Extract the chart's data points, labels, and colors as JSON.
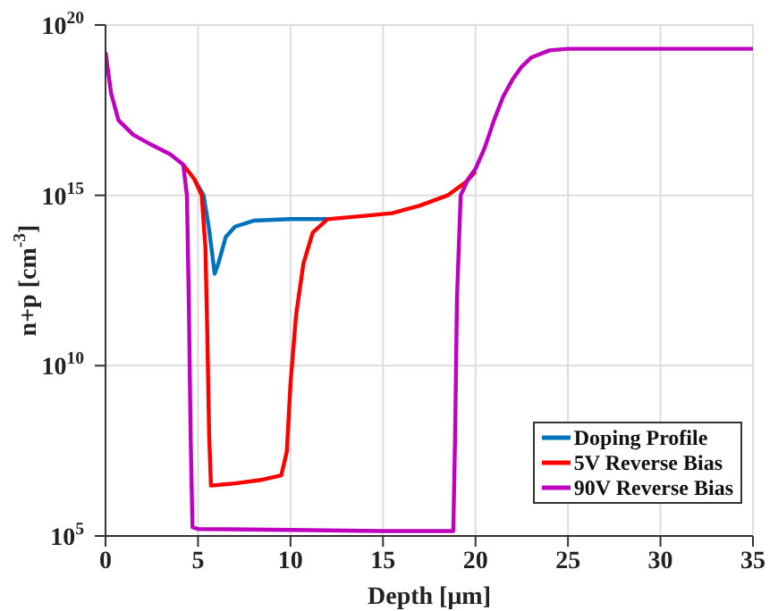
{
  "chart_data": {
    "type": "line",
    "xlabel": "Depth [μm]",
    "ylabel": "n+p [cm$^{-3}$]",
    "xlim": [
      0,
      35
    ],
    "xticks": [
      0,
      5,
      10,
      15,
      20,
      25,
      30,
      35
    ],
    "ylim": [
      100000.0,
      1e+20
    ],
    "yticks": [
      {
        "value": 100000.0,
        "label": "10$^{5}$"
      },
      {
        "value": 10000000000.0,
        "label": "10$^{10}$"
      },
      {
        "value": 1000000000000000.0,
        "label": "10$^{15}$"
      },
      {
        "value": 1e+20,
        "label": "10$^{20}$"
      }
    ],
    "log": "y",
    "grid": true,
    "legend": "bottom right",
    "marker": "none",
    "line_style": "solid",
    "series": [
      {
        "name": "Doping Profile",
        "color": "#0072bd",
        "x": [
          4.8,
          5.3,
          5.6,
          5.9,
          6.1,
          6.5,
          7,
          8,
          10,
          12
        ],
        "values": [
          3000000000000000.0,
          1000000000000000.0,
          100000000000000.0,
          5000000000000.0,
          10000000000000.0,
          60000000000000.0,
          120000000000000.0,
          180000000000000.0,
          200000000000000.0,
          200000000000000.0
        ]
      },
      {
        "name": "5V Reverse Bias",
        "color": "#ff0000",
        "x": [
          4.2,
          4.8,
          5.2,
          5.4,
          5.5,
          5.6,
          5.7,
          7,
          8.5,
          9.5,
          9.8,
          10,
          10.3,
          10.7,
          11.2,
          12,
          14,
          15.5,
          17,
          18.5,
          19.5,
          20
        ],
        "values": [
          8000000000000000.0,
          3000000000000000.0,
          1000000000000000.0,
          30000000000000.0,
          100000000000.0,
          100000000.0,
          3000000.0,
          3500000.0,
          4500000.0,
          6000000.0,
          30000000.0,
          3000000000.0,
          300000000000.0,
          10000000000000.0,
          80000000000000.0,
          200000000000000.0,
          250000000000000.0,
          300000000000000.0,
          500000000000000.0,
          1000000000000000.0,
          2500000000000000.0,
          5000000000000000.0
        ]
      },
      {
        "name": "90V Reverse Bias",
        "color": "#c000c0",
        "x": [
          0,
          0.3,
          0.7,
          1.5,
          2.5,
          3.5,
          4.2,
          4.4,
          4.5,
          4.6,
          4.7,
          5,
          10,
          15,
          18.8,
          18.9,
          19,
          19.2,
          19.6,
          20,
          20.5,
          21,
          21.5,
          22,
          22.5,
          23,
          24,
          25,
          30,
          35
        ],
        "values": [
          1.6e+19,
          1e+18,
          1.6e+17,
          6e+16,
          3e+16,
          1.6e+16,
          8000000000000000.0,
          1000000000000000.0,
          1000000000000.0,
          100000000.0,
          180000.0,
          160000.0,
          150000.0,
          140000.0,
          140000.0,
          100000000.0,
          1000000000000.0,
          1000000000000000.0,
          3000000000000000.0,
          6000000000000000.0,
          2.5e+16,
          1.6e+17,
          8e+17,
          2.5e+18,
          6e+18,
          1.1e+19,
          1.8e+19,
          2e+19,
          2e+19,
          2e+19
        ]
      }
    ]
  }
}
